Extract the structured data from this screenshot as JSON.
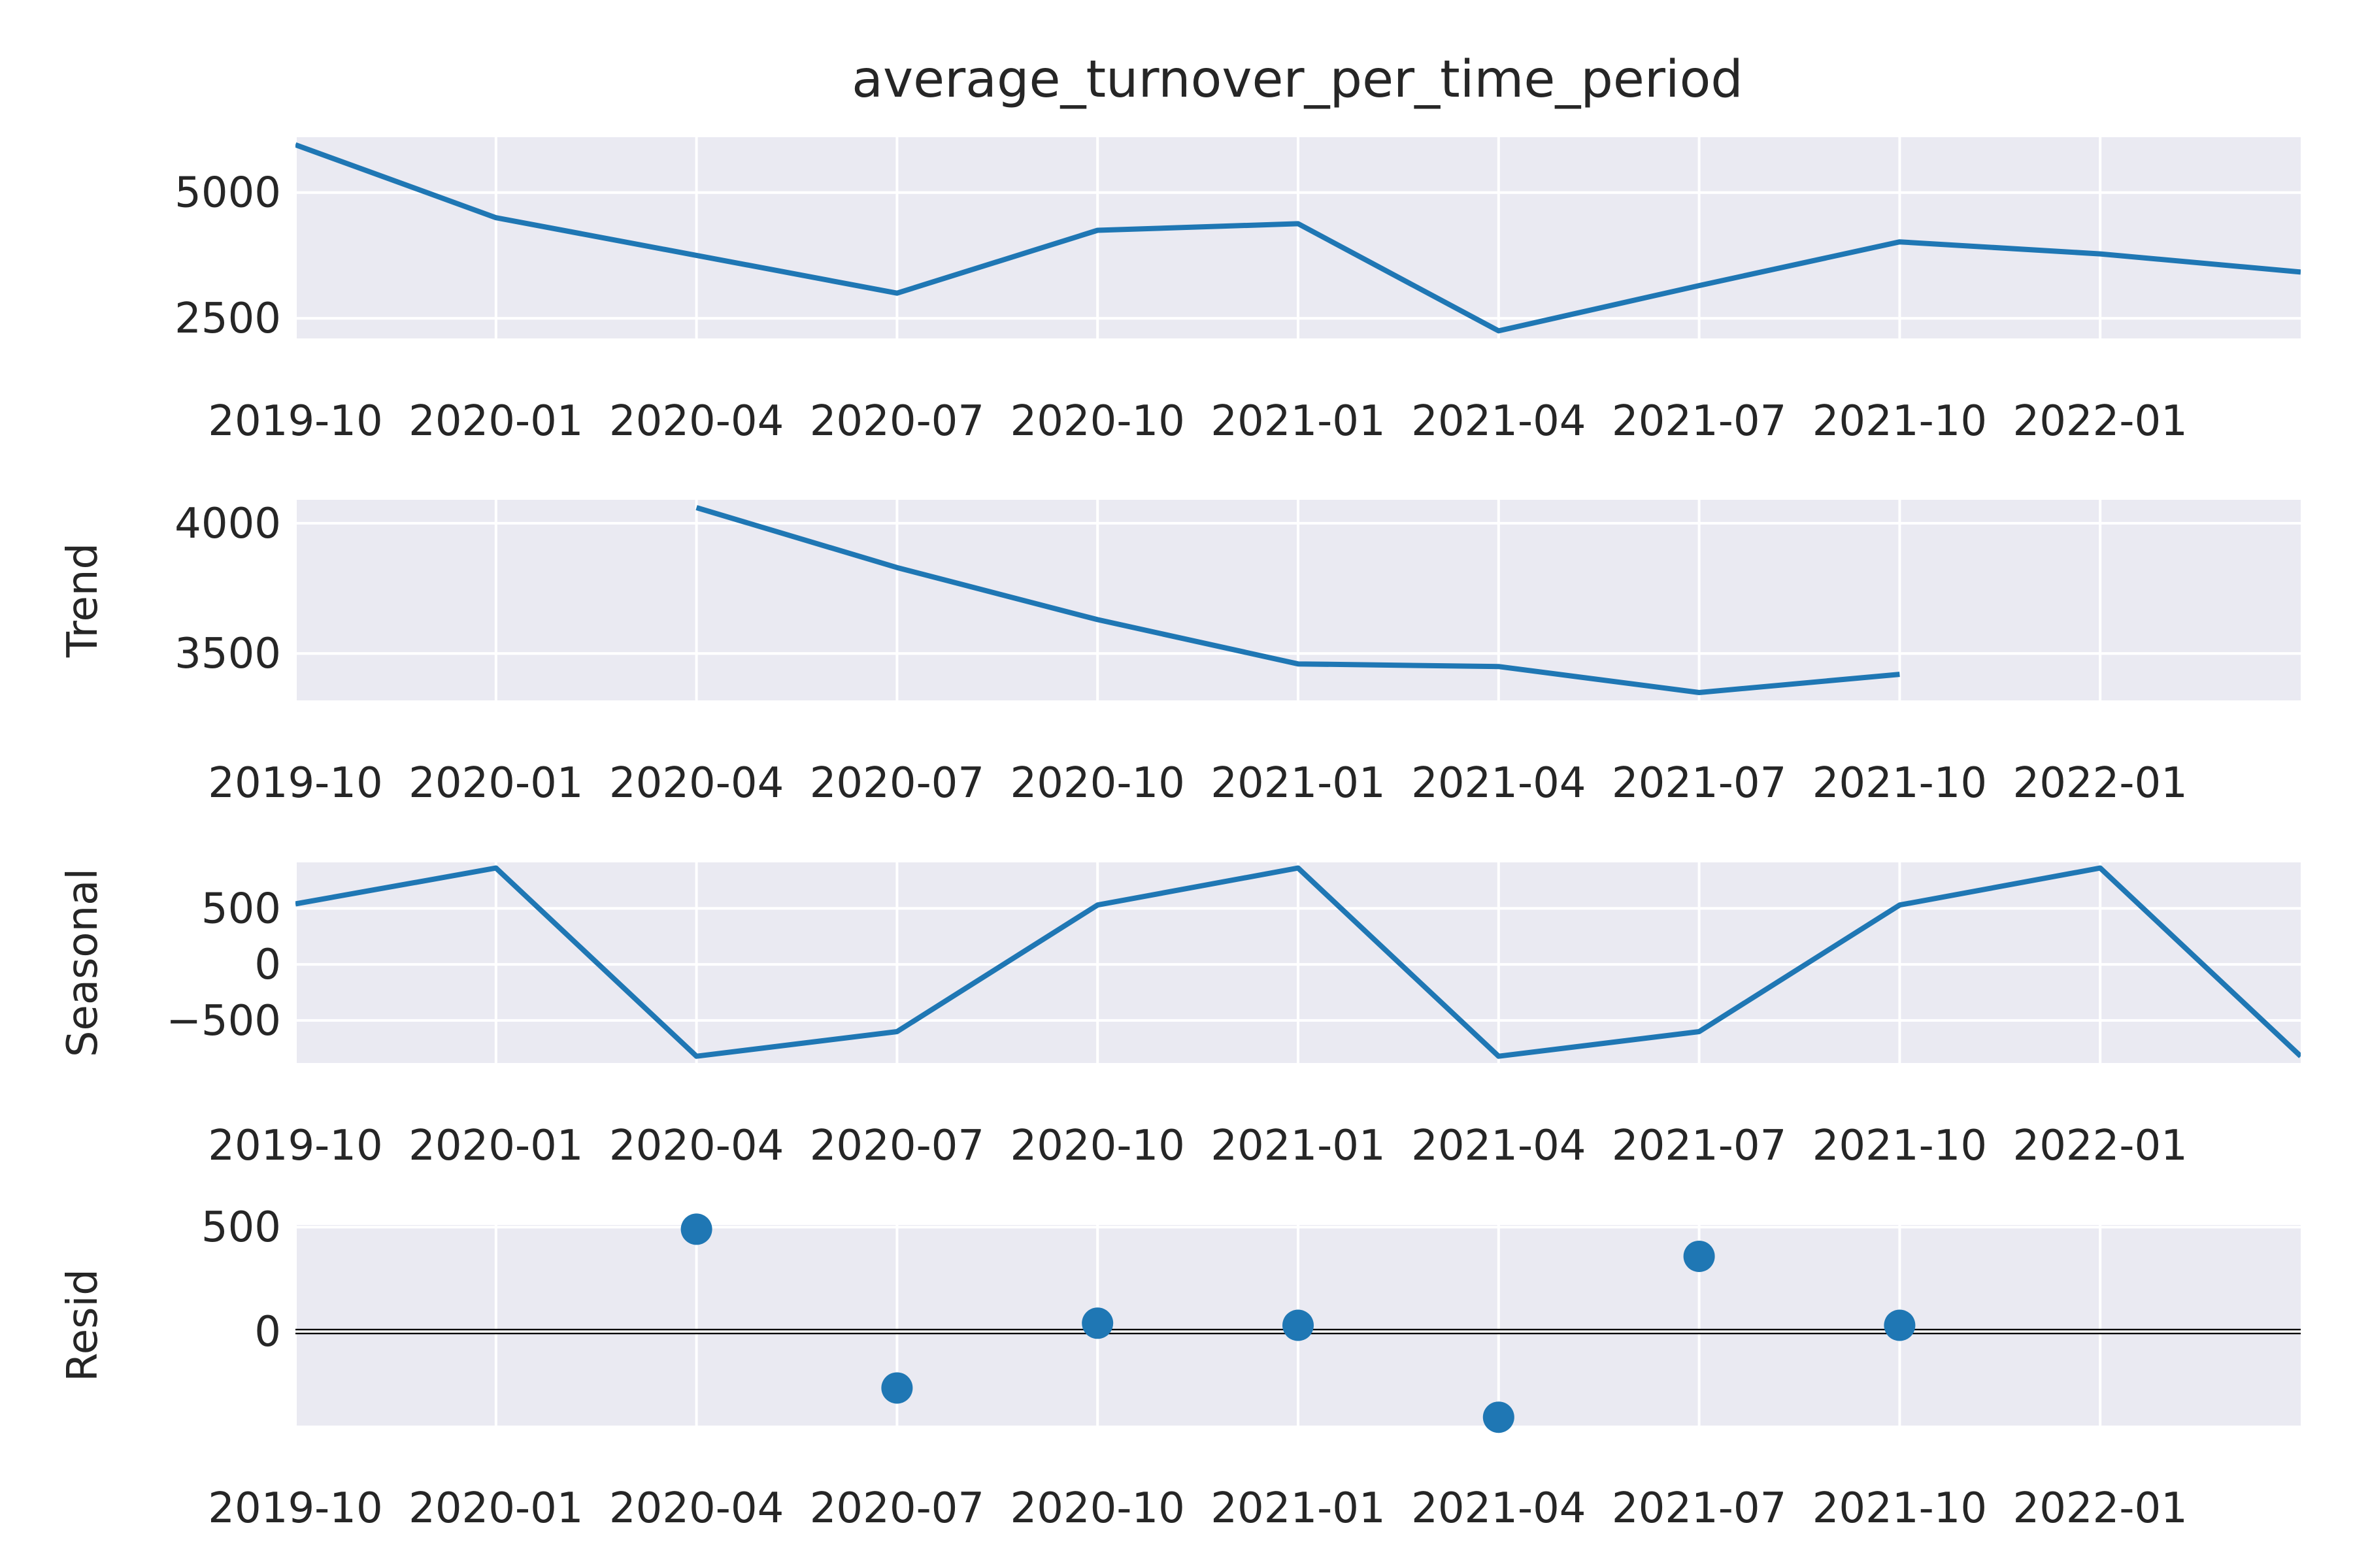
{
  "chart_data": [
    {
      "type": "line",
      "title": "average_turnover_per_time_period",
      "ylabel": "",
      "x_ticks": [
        "2019-10",
        "2020-01",
        "2020-04",
        "2020-07",
        "2020-10",
        "2021-01",
        "2021-04",
        "2021-07",
        "2021-10",
        "2022-01"
      ],
      "y_ticks": [
        2500,
        5000
      ],
      "ylim": [
        2100,
        6100
      ],
      "x": [
        "2019-10",
        "2020-01",
        "2020-04",
        "2020-07",
        "2020-10",
        "2021-01",
        "2021-04",
        "2021-07",
        "2021-10",
        "2022-01",
        "2022-04"
      ],
      "values": [
        5950,
        4500,
        3750,
        3000,
        4250,
        4380,
        2250,
        3150,
        4020,
        3780,
        3420
      ]
    },
    {
      "type": "line",
      "title": "",
      "ylabel": "Trend",
      "x_ticks": [
        "2019-10",
        "2020-01",
        "2020-04",
        "2020-07",
        "2020-10",
        "2021-01",
        "2021-04",
        "2021-07",
        "2021-10",
        "2022-01"
      ],
      "y_ticks": [
        3500,
        4000
      ],
      "ylim": [
        3320,
        4090
      ],
      "x": [
        "2020-04",
        "2020-07",
        "2020-10",
        "2021-01",
        "2021-04",
        "2021-07",
        "2021-10"
      ],
      "values": [
        4060,
        3830,
        3630,
        3460,
        3450,
        3350,
        3420
      ]
    },
    {
      "type": "line",
      "title": "",
      "ylabel": "Seasonal",
      "x_ticks": [
        "2019-10",
        "2020-01",
        "2020-04",
        "2020-07",
        "2020-10",
        "2021-01",
        "2021-04",
        "2021-07",
        "2021-10",
        "2022-01"
      ],
      "y_ticks": [
        -500,
        0,
        500
      ],
      "y_tick_labels": [
        "−500",
        "0",
        "500"
      ],
      "ylim": [
        -880,
        910
      ],
      "x": [
        "2019-10",
        "2020-01",
        "2020-04",
        "2020-07",
        "2020-10",
        "2021-01",
        "2021-04",
        "2021-07",
        "2021-10",
        "2022-01",
        "2022-04"
      ],
      "values": [
        540,
        860,
        -820,
        -600,
        530,
        860,
        -820,
        -600,
        530,
        860,
        -820
      ]
    },
    {
      "type": "scatter",
      "title": "",
      "ylabel": "Resid",
      "x_ticks": [
        "2019-10",
        "2020-01",
        "2020-04",
        "2020-07",
        "2020-10",
        "2021-01",
        "2021-04",
        "2021-07",
        "2021-10",
        "2022-01"
      ],
      "y_ticks": [
        0,
        500
      ],
      "ylim": [
        -450,
        510
      ],
      "baseline": 0,
      "x": [
        "2020-04",
        "2020-07",
        "2020-10",
        "2021-01",
        "2021-04",
        "2021-07",
        "2021-10"
      ],
      "values": [
        490,
        -270,
        40,
        30,
        -410,
        360,
        30
      ]
    }
  ],
  "colors": {
    "line": "#1f77b4",
    "panel_bg": "#eaeaf2",
    "grid": "#ffffff",
    "text": "#262626",
    "baseline": "#000000"
  }
}
